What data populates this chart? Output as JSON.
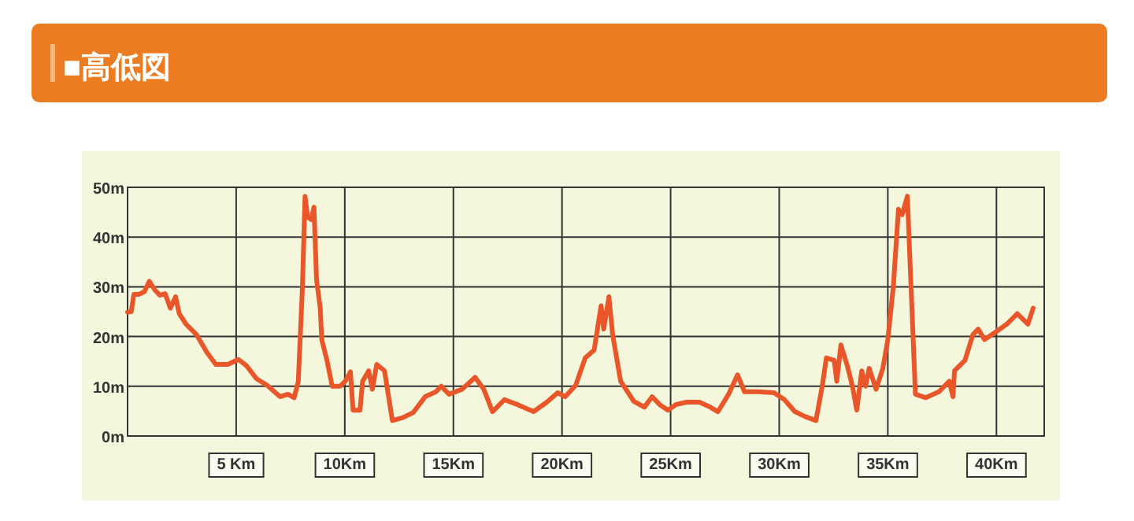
{
  "chart_data": {
    "type": "line",
    "title": "■高低図",
    "x": [
      0,
      0.17,
      0.29,
      0.53,
      0.77,
      1.0,
      1.25,
      1.49,
      1.73,
      1.97,
      2.21,
      2.38,
      2.69,
      3.17,
      3.65,
      4.06,
      4.62,
      5.1,
      5.46,
      5.94,
      6.42,
      7.02,
      7.38,
      7.67,
      7.86,
      8.05,
      8.17,
      8.29,
      8.46,
      8.58,
      8.7,
      8.87,
      8.94,
      9.18,
      9.42,
      9.78,
      10.02,
      10.26,
      10.38,
      10.7,
      10.82,
      11.1,
      11.27,
      11.47,
      11.83,
      12.19,
      12.67,
      13.15,
      13.7,
      14.2,
      14.44,
      14.8,
      15.4,
      16.0,
      16.4,
      16.8,
      17.35,
      17.96,
      18.69,
      19.3,
      19.8,
      20.15,
      20.63,
      21.07,
      21.48,
      21.8,
      21.92,
      22.16,
      22.33,
      22.7,
      23.3,
      23.79,
      24.15,
      24.5,
      24.88,
      25.24,
      25.73,
      26.33,
      26.82,
      27.18,
      27.67,
      28.08,
      28.4,
      29.04,
      29.76,
      30.24,
      30.72,
      31.2,
      31.69,
      31.98,
      32.17,
      32.53,
      32.65,
      32.84,
      33.13,
      33.37,
      33.57,
      33.8,
      33.98,
      34.14,
      34.46,
      34.77,
      35.0,
      35.25,
      35.49,
      35.66,
      35.9,
      36.27,
      36.75,
      37.35,
      37.83,
      38.0,
      38.07,
      38.55,
      38.92,
      39.16,
      39.45,
      40.0,
      40.48,
      40.96,
      41.45,
      41.69
    ],
    "series": [
      {
        "color": "#e8562a",
        "values": [
          24.9,
          25,
          28.5,
          28.5,
          29,
          31.1,
          29.4,
          28.3,
          28.6,
          25.7,
          28,
          24.6,
          22.5,
          20.4,
          16.8,
          14.4,
          14.4,
          15.4,
          14.2,
          11.5,
          10.2,
          7.9,
          8.4,
          7.7,
          11,
          29.9,
          48.2,
          44,
          43.5,
          46,
          31.4,
          25.7,
          19.4,
          15.2,
          10,
          10,
          11,
          12.9,
          5.2,
          5.2,
          11,
          13.1,
          9.4,
          14.4,
          13.1,
          3.1,
          3.7,
          4.7,
          7.9,
          8.9,
          10,
          8.4,
          9.4,
          11.8,
          9.4,
          4.9,
          7.3,
          6.3,
          4.9,
          6.8,
          8.7,
          7.9,
          10.2,
          15.7,
          17.3,
          26.2,
          21.5,
          28,
          20.4,
          11,
          7,
          5.8,
          7.9,
          6.3,
          5.2,
          6.3,
          6.8,
          6.8,
          5.8,
          4.9,
          8.4,
          12.3,
          8.9,
          8.9,
          8.7,
          7.3,
          4.9,
          3.9,
          3.1,
          10,
          15.7,
          15.2,
          11,
          18.3,
          14.2,
          10,
          5.2,
          13.1,
          10,
          13.6,
          9.4,
          13.6,
          19.4,
          29.9,
          45.6,
          44.5,
          48.2,
          8.4,
          7.7,
          8.9,
          11,
          7.9,
          13.1,
          15.2,
          20.4,
          21.5,
          19.4,
          21,
          22.5,
          24.6,
          22.5,
          25.7
        ]
      }
    ],
    "xlim": [
      0,
      42.2
    ],
    "ylim": [
      0,
      50
    ],
    "xticks": [
      {
        "value": 5,
        "label": "5 Km"
      },
      {
        "value": 10,
        "label": "10Km"
      },
      {
        "value": 15,
        "label": "15Km"
      },
      {
        "value": 20,
        "label": "20Km"
      },
      {
        "value": 25,
        "label": "25Km"
      },
      {
        "value": 30,
        "label": "30Km"
      },
      {
        "value": 35,
        "label": "35Km"
      },
      {
        "value": 40,
        "label": "40Km"
      }
    ],
    "yticks": [
      {
        "value": 0,
        "label": "0m"
      },
      {
        "value": 10,
        "label": "10m"
      },
      {
        "value": 20,
        "label": "20m"
      },
      {
        "value": 30,
        "label": "30m"
      },
      {
        "value": 40,
        "label": "40m"
      },
      {
        "value": 50,
        "label": "50m"
      }
    ],
    "grid": true
  }
}
